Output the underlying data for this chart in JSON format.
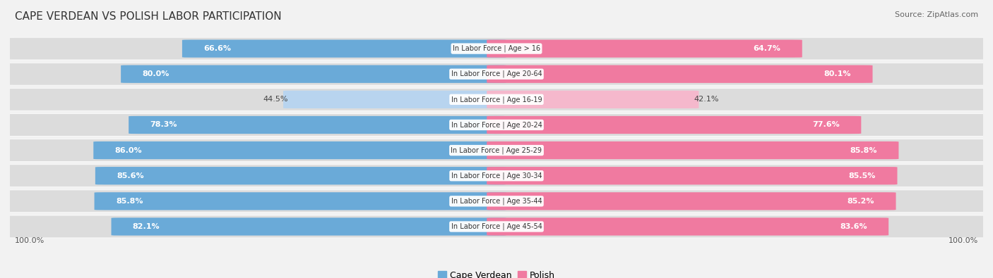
{
  "title": "CAPE VERDEAN VS POLISH LABOR PARTICIPATION",
  "source": "Source: ZipAtlas.com",
  "categories": [
    "In Labor Force | Age > 16",
    "In Labor Force | Age 20-64",
    "In Labor Force | Age 16-19",
    "In Labor Force | Age 20-24",
    "In Labor Force | Age 25-29",
    "In Labor Force | Age 30-34",
    "In Labor Force | Age 35-44",
    "In Labor Force | Age 45-54"
  ],
  "cape_verdean": [
    66.6,
    80.0,
    44.5,
    78.3,
    86.0,
    85.6,
    85.8,
    82.1
  ],
  "polish": [
    64.7,
    80.1,
    42.1,
    77.6,
    85.8,
    85.5,
    85.2,
    83.6
  ],
  "cape_verdean_color_strong": "#6aaad8",
  "cape_verdean_color_light": "#b8d4ef",
  "polish_color_strong": "#f07aa0",
  "polish_color_light": "#f5b8cc",
  "bg_color": "#f2f2f2",
  "row_bg": "#e8e8e8",
  "label_fontsize": 8.0,
  "title_fontsize": 11,
  "source_fontsize": 8,
  "legend_fontsize": 9,
  "max_val": 100.0,
  "light_rows": [
    2
  ]
}
